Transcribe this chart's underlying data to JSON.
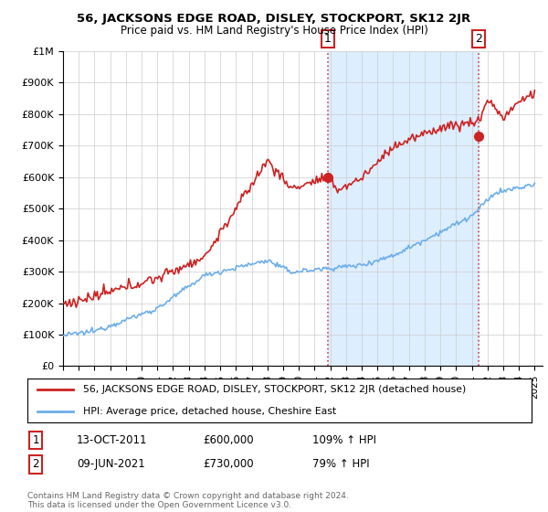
{
  "title": "56, JACKSONS EDGE ROAD, DISLEY, STOCKPORT, SK12 2JR",
  "subtitle": "Price paid vs. HM Land Registry's House Price Index (HPI)",
  "ylabel_ticks": [
    "£0",
    "£100K",
    "£200K",
    "£300K",
    "£400K",
    "£500K",
    "£600K",
    "£700K",
    "£800K",
    "£900K",
    "£1M"
  ],
  "ylim": [
    0,
    1000000
  ],
  "xlim_start": 1995.0,
  "xlim_end": 2025.5,
  "purchase1_x": 2011.83,
  "purchase1_y": 600000,
  "purchase1_label": "1",
  "purchase2_x": 2021.45,
  "purchase2_y": 730000,
  "purchase2_label": "2",
  "legend_line1": "56, JACKSONS EDGE ROAD, DISLEY, STOCKPORT, SK12 2JR (detached house)",
  "legend_line2": "HPI: Average price, detached house, Cheshire East",
  "table_row1": [
    "1",
    "13-OCT-2011",
    "£600,000",
    "109% ↑ HPI"
  ],
  "table_row2": [
    "2",
    "09-JUN-2021",
    "£730,000",
    "79% ↑ HPI"
  ],
  "footer": "Contains HM Land Registry data © Crown copyright and database right 2024.\nThis data is licensed under the Open Government Licence v3.0.",
  "hpi_color": "#6daee8",
  "price_color": "#cc2222",
  "dashed_color": "#cc4444",
  "marker_color": "#cc2222",
  "grid_color": "#cccccc",
  "shade_color": "#ddeeff",
  "bg_color": "#ffffff"
}
